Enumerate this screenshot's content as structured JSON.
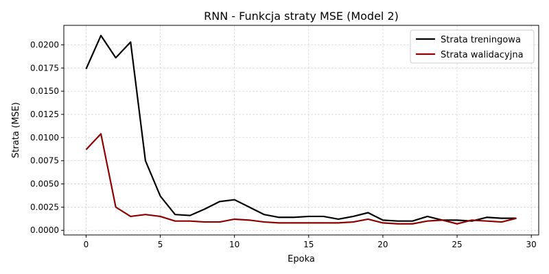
{
  "chart_data": {
    "type": "line",
    "title": "RNN - Funkcja straty MSE (Model 2)",
    "xlabel": "Epoka",
    "ylabel": "Strata (MSE)",
    "xlim": [
      -1.5,
      30.5
    ],
    "ylim": [
      -0.0005,
      0.0221
    ],
    "xticks": [
      0,
      5,
      10,
      15,
      20,
      25,
      30
    ],
    "xtick_labels": [
      "0",
      "5",
      "10",
      "15",
      "20",
      "25",
      "30"
    ],
    "yticks": [
      0.0,
      0.0025,
      0.005,
      0.0075,
      0.01,
      0.0125,
      0.015,
      0.0175,
      0.02
    ],
    "ytick_labels": [
      "0.0000",
      "0.0025",
      "0.0050",
      "0.0075",
      "0.0100",
      "0.0125",
      "0.0150",
      "0.0175",
      "0.0200"
    ],
    "grid": true,
    "legend_position": "top-right",
    "x": [
      0,
      1,
      2,
      3,
      4,
      5,
      6,
      7,
      8,
      9,
      10,
      11,
      12,
      13,
      14,
      15,
      16,
      17,
      18,
      19,
      20,
      21,
      22,
      23,
      24,
      25,
      26,
      27,
      28,
      29
    ],
    "series": [
      {
        "name": "Strata treningowa",
        "color": "#000000",
        "values": [
          0.0174,
          0.021,
          0.0186,
          0.0203,
          0.0075,
          0.0037,
          0.0017,
          0.0016,
          0.0023,
          0.0031,
          0.0033,
          0.0025,
          0.0017,
          0.0014,
          0.0014,
          0.0015,
          0.0015,
          0.0012,
          0.0015,
          0.0019,
          0.0011,
          0.001,
          0.001,
          0.0015,
          0.0011,
          0.0011,
          0.001,
          0.0014,
          0.0013,
          0.0013
        ]
      },
      {
        "name": "Strata walidacyjna",
        "color": "#8b0000",
        "values": [
          0.0087,
          0.0104,
          0.0025,
          0.0015,
          0.0017,
          0.0015,
          0.001,
          0.001,
          0.0009,
          0.0009,
          0.0012,
          0.0011,
          0.0009,
          0.0008,
          0.0008,
          0.0008,
          0.0008,
          0.0008,
          0.0009,
          0.0012,
          0.0008,
          0.0007,
          0.0007,
          0.001,
          0.0011,
          0.0007,
          0.0011,
          0.001,
          0.0009,
          0.0013
        ]
      }
    ]
  }
}
